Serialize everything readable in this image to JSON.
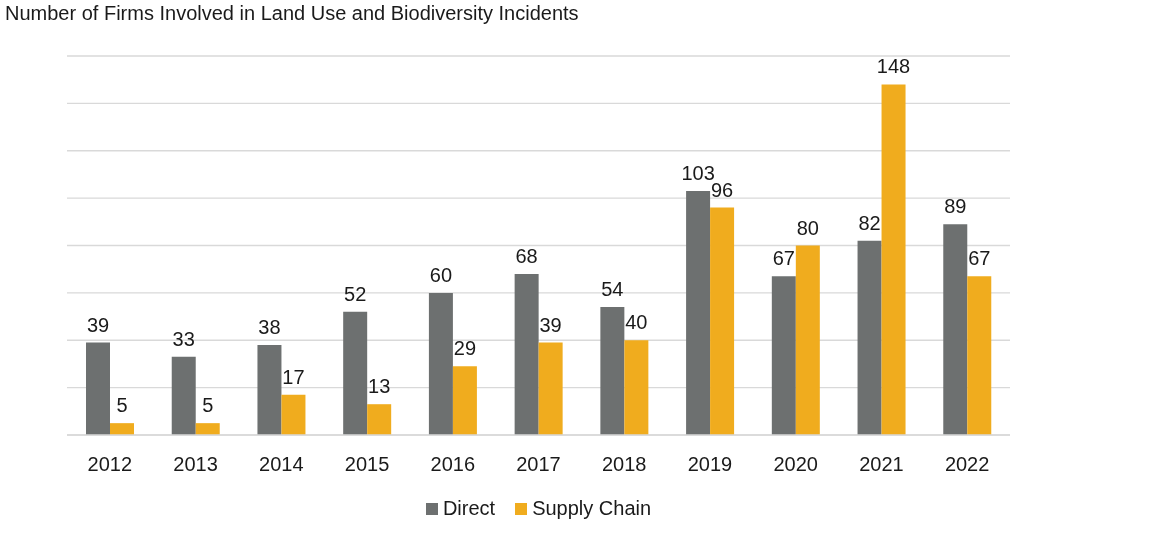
{
  "chart_data": {
    "type": "bar",
    "title": "Number of Firms Involved in Land Use and Biodiversity Incidents",
    "categories": [
      "2012",
      "2013",
      "2014",
      "2015",
      "2016",
      "2017",
      "2018",
      "2019",
      "2020",
      "2021",
      "2022"
    ],
    "series": [
      {
        "name": "Direct",
        "color": "#6d7070",
        "values": [
          39,
          33,
          38,
          52,
          60,
          68,
          54,
          103,
          67,
          82,
          89
        ]
      },
      {
        "name": "Supply Chain",
        "color": "#f0ac1e",
        "values": [
          5,
          5,
          17,
          13,
          29,
          39,
          40,
          96,
          80,
          148,
          67
        ]
      }
    ],
    "ylim": [
      0,
      160
    ],
    "yticks": [
      {
        "value": 0,
        "label": null
      },
      {
        "value": 20,
        "label": null
      },
      {
        "value": 40,
        "label": null
      },
      {
        "value": 60,
        "label": null
      },
      {
        "value": 80,
        "label": null
      },
      {
        "value": 100,
        "label": null
      },
      {
        "value": 120,
        "label": null
      },
      {
        "value": 140,
        "label": null
      },
      {
        "value": 160,
        "label": null
      }
    ],
    "tick_labels": "x",
    "grid": "y",
    "legend": "bottom",
    "data_labels": true
  }
}
